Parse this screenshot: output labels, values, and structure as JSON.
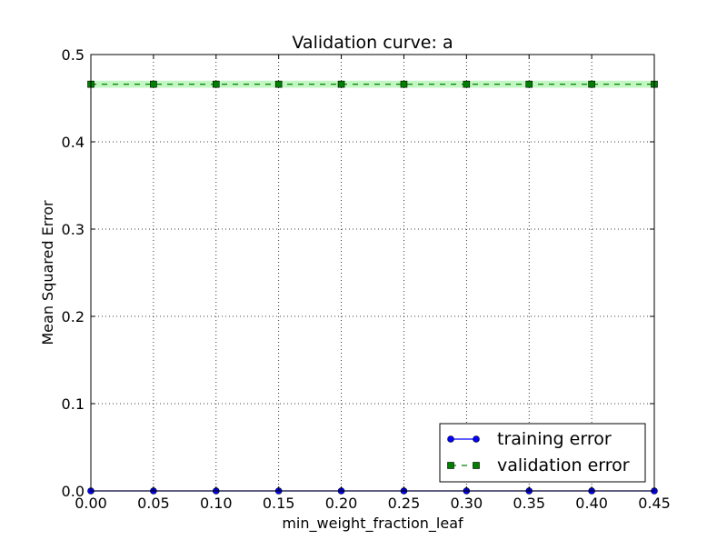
{
  "chart_data": {
    "type": "line",
    "title": "Validation curve: a",
    "xlabel": "min_weight_fraction_leaf",
    "ylabel": "Mean Squared Error",
    "xlim": [
      0.0,
      0.45
    ],
    "ylim": [
      0.0,
      0.5
    ],
    "x": [
      0.0,
      0.05,
      0.1,
      0.15,
      0.2,
      0.25,
      0.3,
      0.35,
      0.4,
      0.45
    ],
    "x_ticks": [
      "0.00",
      "0.05",
      "0.10",
      "0.15",
      "0.20",
      "0.25",
      "0.30",
      "0.35",
      "0.40",
      "0.45"
    ],
    "y_ticks": [
      "0.0",
      "0.1",
      "0.2",
      "0.3",
      "0.4",
      "0.5"
    ],
    "y_tick_values": [
      0.0,
      0.1,
      0.2,
      0.3,
      0.4,
      0.5
    ],
    "grid": true,
    "legend_position": "bottom-right",
    "series": [
      {
        "name": "training error",
        "values": [
          0.0,
          0.0,
          0.0,
          0.0,
          0.0,
          0.0,
          0.0,
          0.0,
          0.0,
          0.0
        ],
        "color": "#0000ff",
        "marker": "circle",
        "linestyle": "solid"
      },
      {
        "name": "validation error",
        "values": [
          0.466,
          0.466,
          0.466,
          0.466,
          0.466,
          0.466,
          0.466,
          0.466,
          0.466,
          0.466
        ],
        "band_low": [
          0.462,
          0.462,
          0.462,
          0.462,
          0.462,
          0.462,
          0.462,
          0.462,
          0.462,
          0.462
        ],
        "band_high": [
          0.47,
          0.47,
          0.47,
          0.47,
          0.47,
          0.47,
          0.47,
          0.47,
          0.47,
          0.47
        ],
        "color": "#008000",
        "band_color": "#90ee90",
        "marker": "square",
        "linestyle": "dashed"
      }
    ]
  }
}
